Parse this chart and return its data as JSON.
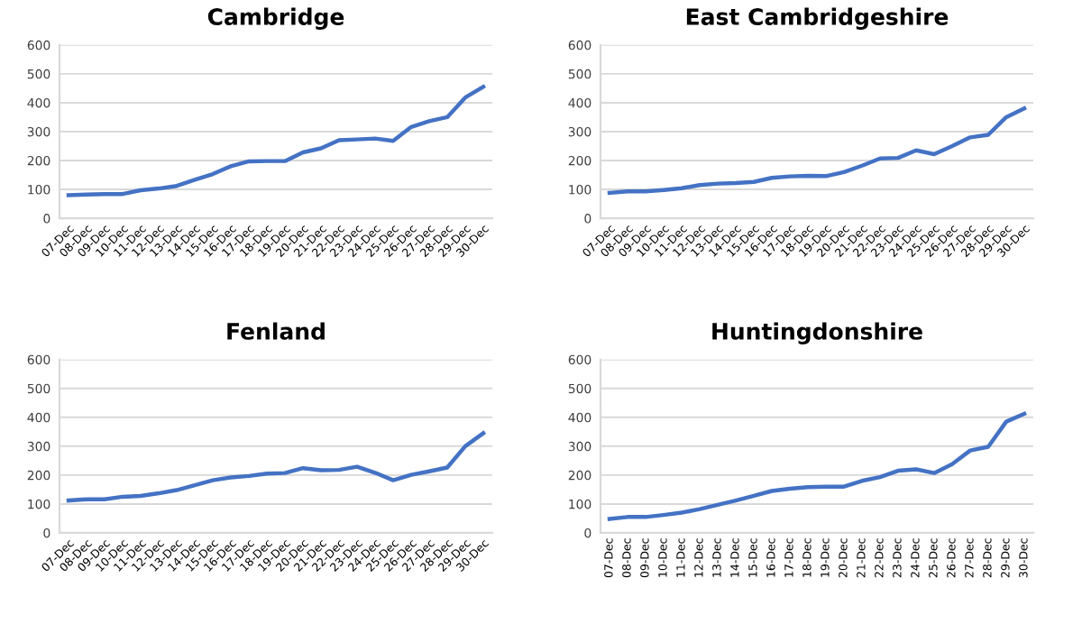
{
  "chart_data": [
    {
      "type": "line",
      "title": "Cambridge",
      "categories": [
        "07-Dec",
        "08-Dec",
        "09-Dec",
        "10-Dec",
        "11-Dec",
        "12-Dec",
        "13-Dec",
        "14-Dec",
        "15-Dec",
        "16-Dec",
        "17-Dec",
        "18-Dec",
        "19-Dec",
        "20-Dec",
        "21-Dec",
        "22-Dec",
        "23-Dec",
        "24-Dec",
        "25-Dec",
        "26-Dec",
        "27-Dec",
        "28-Dec",
        "29-Dec",
        "30-Dec"
      ],
      "series": [
        {
          "color": "#4472c4",
          "values": [
            80,
            82,
            84,
            84,
            97,
            103,
            112,
            133,
            153,
            180,
            197,
            198,
            198,
            228,
            242,
            270,
            273,
            276,
            268,
            316,
            336,
            350,
            418,
            455
          ]
        }
      ],
      "ylim": [
        0,
        600
      ],
      "yticks": [
        0,
        100,
        200,
        300,
        400,
        500,
        600
      ],
      "grid": "y"
    },
    {
      "type": "line",
      "title": "East Cambridgeshire",
      "categories": [
        "07-Dec",
        "08-Dec",
        "09-Dec",
        "10-Dec",
        "11-Dec",
        "12-Dec",
        "13-Dec",
        "14-Dec",
        "15-Dec",
        "16-Dec",
        "17-Dec",
        "18-Dec",
        "19-Dec",
        "20-Dec",
        "21-Dec",
        "22-Dec",
        "23-Dec",
        "24-Dec",
        "25-Dec",
        "26-Dec",
        "27-Dec",
        "28-Dec",
        "29-Dec",
        "30-Dec"
      ],
      "series": [
        {
          "color": "#4472c4",
          "values": [
            88,
            93,
            93,
            98,
            104,
            115,
            120,
            122,
            126,
            140,
            145,
            147,
            146,
            160,
            182,
            207,
            209,
            235,
            222,
            250,
            280,
            289,
            350,
            380
          ]
        }
      ],
      "ylim": [
        0,
        600
      ],
      "yticks": [
        0,
        100,
        200,
        300,
        400,
        500,
        600
      ],
      "grid": "y"
    },
    {
      "type": "line",
      "title": "Fenland",
      "categories": [
        "07-Dec",
        "08-Dec",
        "09-Dec",
        "10-Dec",
        "11-Dec",
        "12-Dec",
        "13-Dec",
        "14-Dec",
        "15-Dec",
        "16-Dec",
        "17-Dec",
        "18-Dec",
        "19-Dec",
        "20-Dec",
        "21-Dec",
        "22-Dec",
        "23-Dec",
        "24-Dec",
        "25-Dec",
        "26-Dec",
        "27-Dec",
        "28-Dec",
        "29-Dec",
        "30-Dec"
      ],
      "series": [
        {
          "color": "#4472c4",
          "values": [
            112,
            116,
            116,
            125,
            128,
            137,
            148,
            165,
            182,
            192,
            197,
            205,
            207,
            224,
            217,
            218,
            229,
            208,
            182,
            201,
            213,
            226,
            300,
            345
          ]
        }
      ],
      "ylim": [
        0,
        600
      ],
      "yticks": [
        0,
        100,
        200,
        300,
        400,
        500,
        600
      ],
      "grid": "y"
    },
    {
      "type": "line",
      "title": "Huntingdonshire",
      "categories": [
        "07-Dec",
        "08-Dec",
        "09-Dec",
        "10-Dec",
        "11-Dec",
        "12-Dec",
        "13-Dec",
        "14-Dec",
        "15-Dec",
        "16-Dec",
        "17-Dec",
        "18-Dec",
        "19-Dec",
        "20-Dec",
        "21-Dec",
        "22-Dec",
        "23-Dec",
        "24-Dec",
        "25-Dec",
        "26-Dec",
        "27-Dec",
        "28-Dec",
        "29-Dec",
        "30-Dec"
      ],
      "series": [
        {
          "color": "#4472c4",
          "values": [
            48,
            55,
            55,
            62,
            70,
            82,
            97,
            112,
            128,
            145,
            153,
            158,
            160,
            160,
            180,
            193,
            215,
            220,
            207,
            238,
            285,
            298,
            385,
            412
          ]
        }
      ],
      "ylim": [
        0,
        600
      ],
      "yticks": [
        0,
        100,
        200,
        300,
        400,
        500,
        600
      ],
      "grid": "y"
    }
  ]
}
